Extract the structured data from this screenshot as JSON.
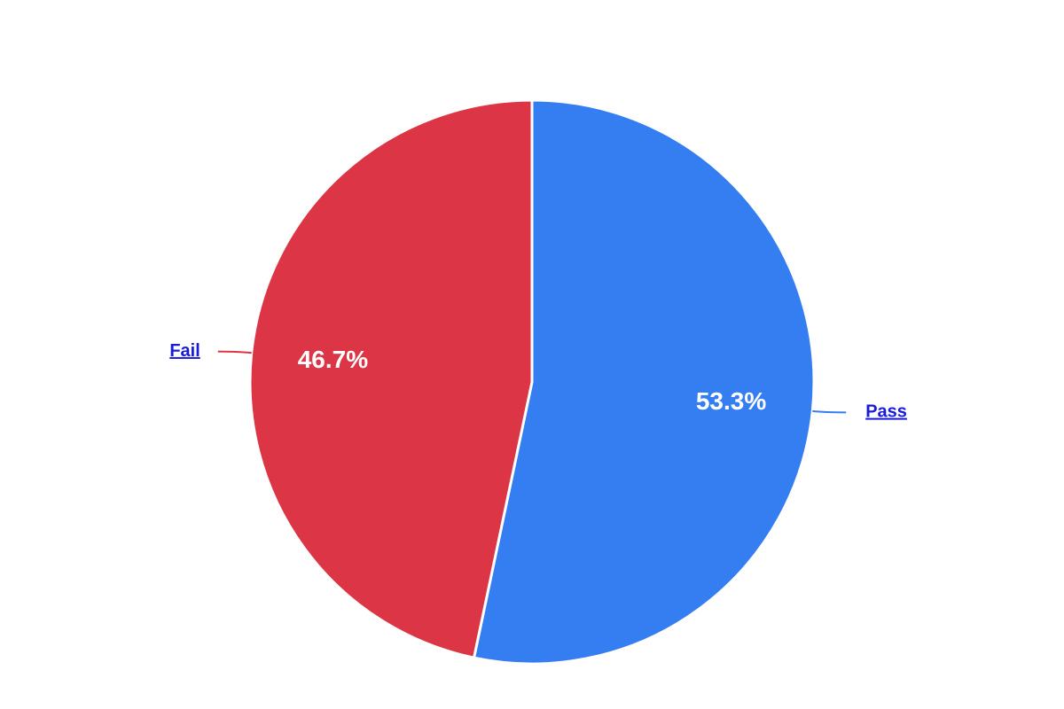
{
  "chart_data": {
    "type": "pie",
    "start_angle_deg": 0,
    "slices": [
      {
        "name": "Pass",
        "value": 53.3,
        "label": "53.3%",
        "color": "#357EF2"
      },
      {
        "name": "Fail",
        "value": 46.7,
        "label": "46.7%",
        "color": "#DC3545"
      }
    ],
    "legend_placement": "outside-labels"
  },
  "colors": {
    "link_text": "#1a1adb",
    "slice_border": "#ffffff",
    "value_label": "#ffffff"
  }
}
